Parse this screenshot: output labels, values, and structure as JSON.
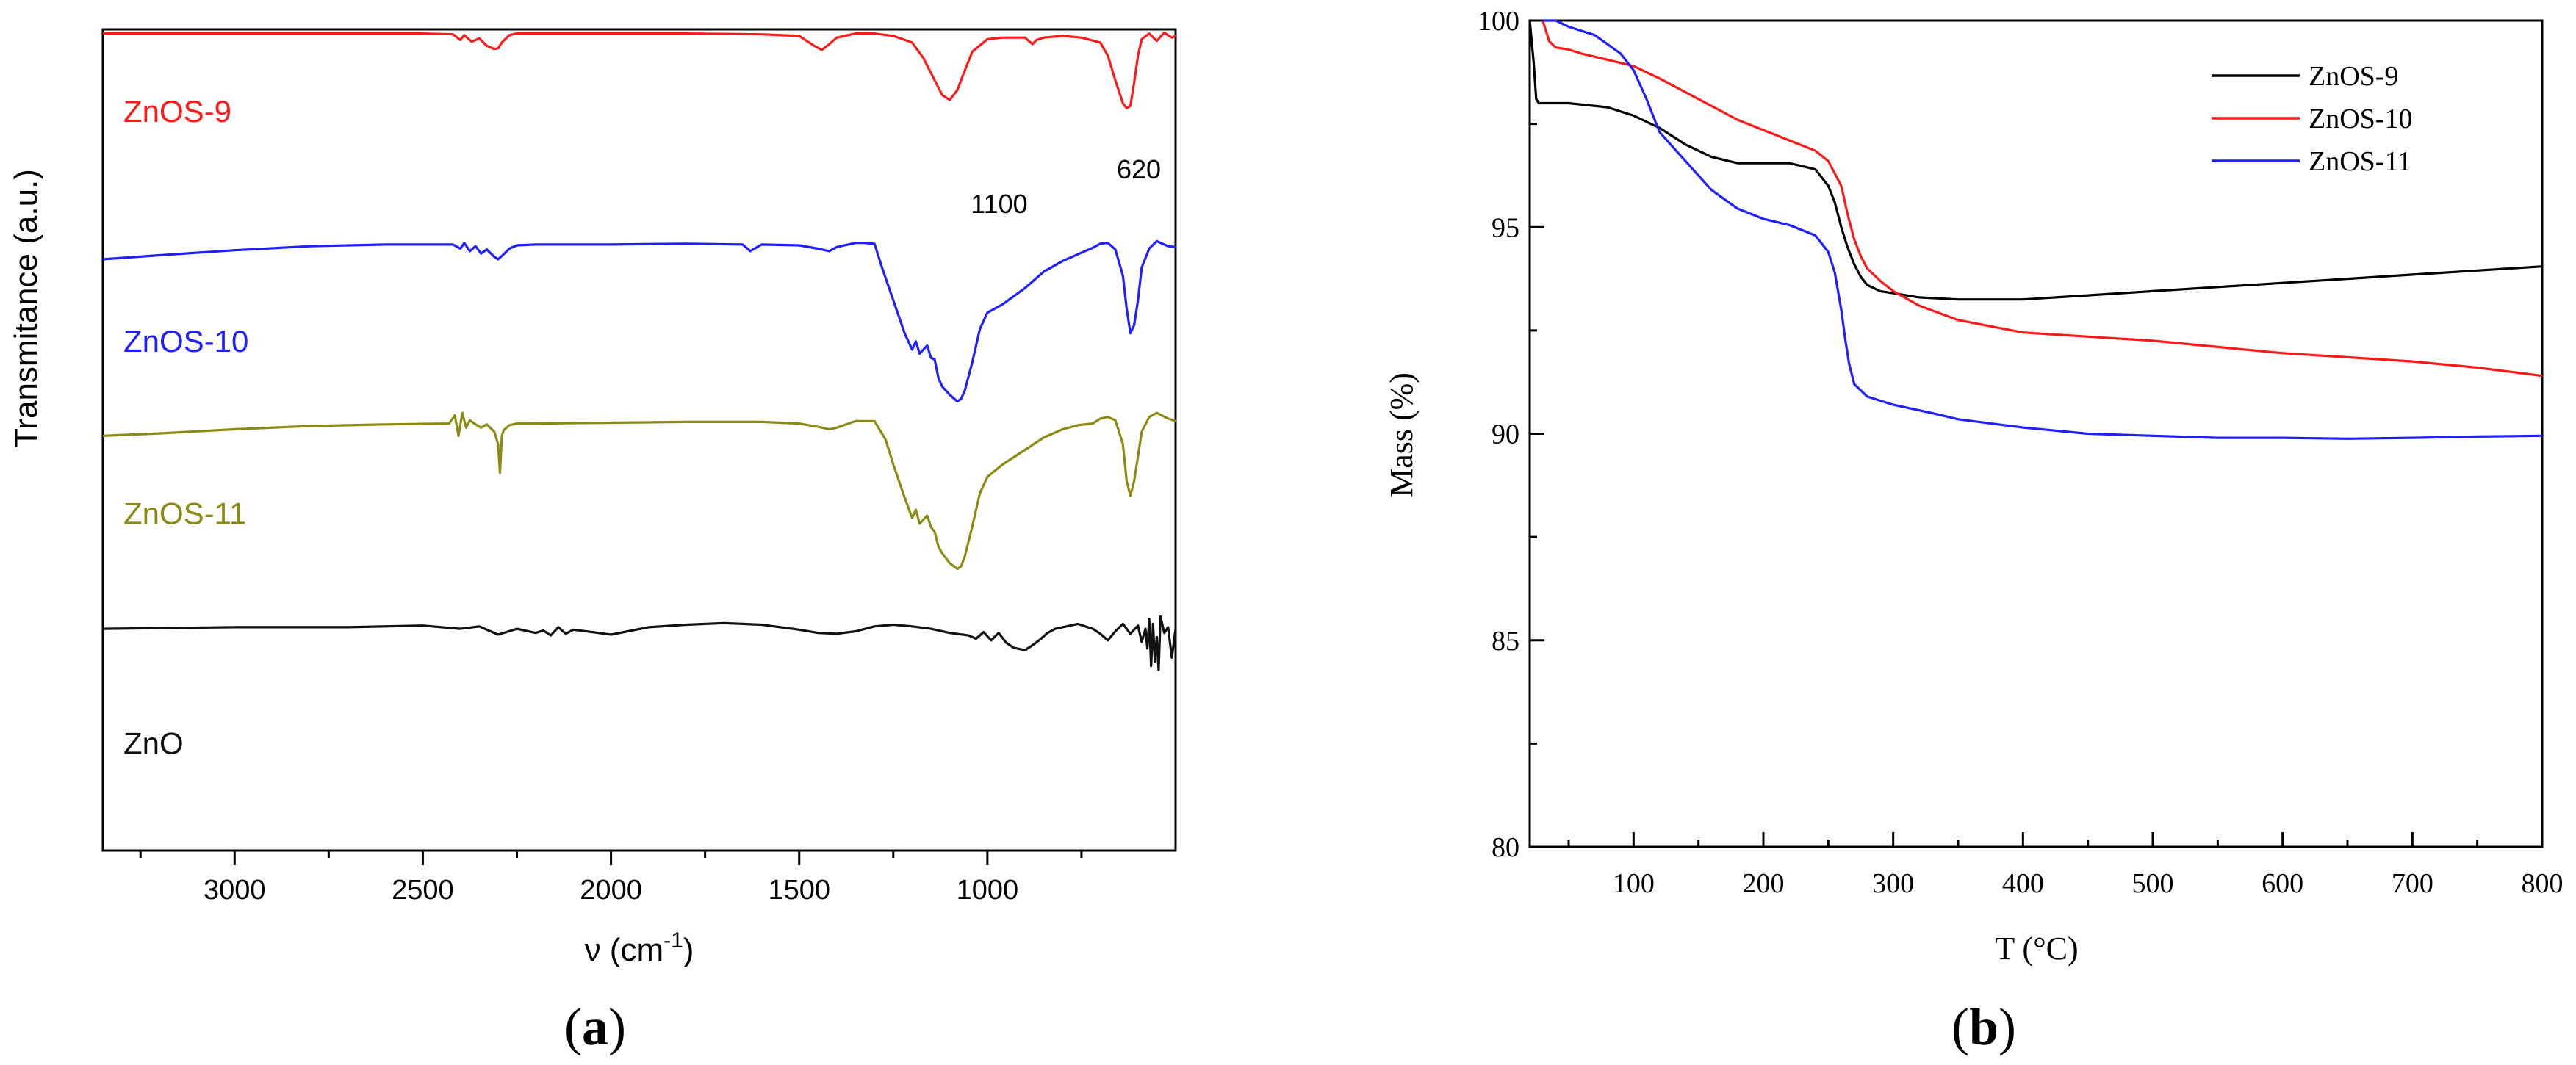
{
  "chart_data": [
    {
      "type": "line",
      "panel_label": "(a)",
      "panel_letter": "a",
      "title": "",
      "xlabel": "ν (cm",
      "xlabel_sup": "-1",
      "xlabel_close": ")",
      "ylabel": "Transmitance (a.u.)",
      "xlim": [
        3350,
        500
      ],
      "x_reversed": true,
      "x_ticks": [
        3000,
        2500,
        2000,
        1500,
        1000
      ],
      "y_ticks_shown": false,
      "legend": "inline labels, left",
      "annotations": [
        {
          "text": "1100",
          "x": 1100
        },
        {
          "text": "620",
          "x": 620
        }
      ],
      "series": [
        {
          "name": "ZnOS-9",
          "color": "#ff1a1a",
          "x": [
            3350,
            3000,
            2500,
            2420,
            2400,
            2390,
            2370,
            2350,
            2330,
            2310,
            2300,
            2290,
            2270,
            2250,
            2200,
            2000,
            1800,
            1600,
            1500,
            1460,
            1440,
            1420,
            1400,
            1350,
            1300,
            1250,
            1200,
            1170,
            1140,
            1120,
            1100,
            1080,
            1060,
            1040,
            1000,
            960,
            900,
            880,
            870,
            850,
            800,
            750,
            700,
            680,
            660,
            640,
            630,
            620,
            610,
            600,
            590,
            570,
            550,
            530,
            510,
            500
          ],
          "y": [
            99.5,
            99.5,
            99.5,
            99.4,
            98.7,
            99.3,
            98.5,
            98.9,
            98.0,
            97.6,
            97.7,
            98.4,
            99.3,
            99.5,
            99.5,
            99.5,
            99.5,
            99.4,
            99.2,
            98.0,
            97.5,
            98.2,
            99.0,
            99.5,
            99.5,
            99.2,
            98.4,
            96.5,
            93.8,
            92.0,
            91.4,
            92.6,
            95.0,
            97.3,
            98.8,
            99.0,
            99.0,
            98.2,
            98.7,
            99.0,
            99.2,
            99.0,
            98.4,
            96.8,
            93.8,
            91.0,
            90.4,
            90.7,
            93.5,
            96.8,
            98.8,
            99.5,
            98.6,
            99.6,
            99.0,
            99.2
          ]
        },
        {
          "name": "ZnOS-10",
          "color": "#1f1fff",
          "x": [
            3350,
            3200,
            3000,
            2800,
            2600,
            2420,
            2400,
            2390,
            2375,
            2360,
            2345,
            2330,
            2310,
            2300,
            2290,
            2270,
            2250,
            2200,
            2000,
            1800,
            1650,
            1630,
            1600,
            1500,
            1450,
            1420,
            1400,
            1350,
            1330,
            1300,
            1280,
            1250,
            1220,
            1200,
            1190,
            1180,
            1160,
            1150,
            1140,
            1130,
            1120,
            1100,
            1080,
            1070,
            1060,
            1040,
            1020,
            1000,
            960,
            900,
            850,
            800,
            760,
            720,
            700,
            680,
            660,
            640,
            630,
            620,
            610,
            600,
            590,
            570,
            550,
            520,
            500
          ],
          "y": [
            72.0,
            72.5,
            73.1,
            73.6,
            73.8,
            73.8,
            73.3,
            74.0,
            73.0,
            73.6,
            72.7,
            73.2,
            72.3,
            72.0,
            72.4,
            73.3,
            73.7,
            73.8,
            73.8,
            73.9,
            73.8,
            73.0,
            73.8,
            73.7,
            73.3,
            73.0,
            73.5,
            74.0,
            74.0,
            73.9,
            71.0,
            67.0,
            63.0,
            61.0,
            62.0,
            60.5,
            61.5,
            60.0,
            59.8,
            57.5,
            56.5,
            55.5,
            54.7,
            55.0,
            56.0,
            59.5,
            63.5,
            65.5,
            66.5,
            68.5,
            70.5,
            71.8,
            72.6,
            73.4,
            73.9,
            74.0,
            73.2,
            70.0,
            66.0,
            63.0,
            64.0,
            67.0,
            71.0,
            73.3,
            74.2,
            73.6,
            73.5
          ]
        },
        {
          "name": "ZnOS-11",
          "color": "#8b8b14",
          "x": [
            3350,
            3200,
            3000,
            2800,
            2600,
            2430,
            2415,
            2405,
            2395,
            2385,
            2375,
            2360,
            2345,
            2330,
            2310,
            2300,
            2295,
            2290,
            2285,
            2270,
            2250,
            2200,
            2000,
            1800,
            1600,
            1500,
            1450,
            1420,
            1400,
            1350,
            1300,
            1270,
            1250,
            1220,
            1200,
            1190,
            1180,
            1160,
            1150,
            1140,
            1130,
            1120,
            1100,
            1080,
            1070,
            1060,
            1040,
            1020,
            1000,
            960,
            900,
            850,
            800,
            760,
            720,
            700,
            680,
            660,
            640,
            630,
            620,
            610,
            600,
            590,
            570,
            550,
            520,
            500
          ],
          "y": [
            50.5,
            50.8,
            51.3,
            51.7,
            51.9,
            52.0,
            53.0,
            50.5,
            53.3,
            51.5,
            52.4,
            51.9,
            51.5,
            51.9,
            51.0,
            49.5,
            46.0,
            50.5,
            51.2,
            51.8,
            52.0,
            52.0,
            52.1,
            52.2,
            52.2,
            52.0,
            51.6,
            51.3,
            51.5,
            52.3,
            52.3,
            50.0,
            47.0,
            43.0,
            40.5,
            41.5,
            39.8,
            40.8,
            39.4,
            38.8,
            37.0,
            36.2,
            35.0,
            34.3,
            34.6,
            35.8,
            39.5,
            43.5,
            45.5,
            47.0,
            48.8,
            50.3,
            51.3,
            51.8,
            52.0,
            52.6,
            52.8,
            52.4,
            49.5,
            45.0,
            43.2,
            45.0,
            48.0,
            51.0,
            52.8,
            53.3,
            52.6,
            52.3
          ]
        },
        {
          "name": "ZnO",
          "color": "#111111",
          "x": [
            3350,
            3000,
            2700,
            2500,
            2400,
            2350,
            2300,
            2250,
            2200,
            2180,
            2160,
            2140,
            2120,
            2100,
            2050,
            2000,
            1900,
            1800,
            1700,
            1600,
            1500,
            1450,
            1400,
            1350,
            1300,
            1250,
            1200,
            1150,
            1100,
            1050,
            1030,
            1010,
            990,
            970,
            950,
            930,
            900,
            880,
            860,
            840,
            820,
            800,
            780,
            760,
            740,
            720,
            700,
            680,
            660,
            640,
            620,
            600,
            590,
            580,
            575,
            570,
            565,
            560,
            555,
            550,
            545,
            540,
            530,
            520,
            510,
            500
          ],
          "y": [
            27.0,
            27.2,
            27.2,
            27.4,
            27.0,
            27.3,
            26.3,
            27.0,
            26.5,
            26.8,
            26.2,
            27.2,
            26.4,
            26.9,
            26.6,
            26.3,
            27.2,
            27.5,
            27.7,
            27.5,
            26.9,
            26.5,
            26.4,
            26.7,
            27.3,
            27.5,
            27.3,
            27.0,
            26.5,
            26.2,
            25.8,
            26.6,
            25.6,
            26.5,
            25.3,
            24.7,
            24.4,
            25.0,
            25.7,
            26.5,
            27.0,
            27.2,
            27.4,
            27.6,
            27.3,
            27.0,
            26.4,
            25.6,
            26.7,
            27.6,
            26.4,
            27.4,
            25.4,
            27.0,
            24.6,
            28.2,
            22.5,
            27.6,
            23.0,
            26.0,
            22.0,
            28.5,
            26.5,
            27.2,
            23.5,
            27.0
          ]
        }
      ]
    },
    {
      "type": "line",
      "panel_label": "(b)",
      "panel_letter": "b",
      "title": "",
      "xlabel": "T (°C)",
      "ylabel": "Mass (%)",
      "xlim": [
        20,
        800
      ],
      "ylim": [
        80,
        100
      ],
      "x_ticks": [
        100,
        200,
        300,
        400,
        500,
        600,
        700,
        800
      ],
      "y_ticks": [
        80,
        85,
        90,
        95,
        100
      ],
      "legend": "top-right",
      "series": [
        {
          "name": "ZnOS-9",
          "color": "#000000",
          "x": [
            20,
            23,
            25,
            27,
            30,
            50,
            80,
            100,
            120,
            140,
            160,
            180,
            200,
            220,
            240,
            250,
            255,
            260,
            265,
            270,
            275,
            280,
            290,
            300,
            320,
            350,
            400,
            450,
            500,
            550,
            600,
            650,
            700,
            750,
            800
          ],
          "y": [
            100,
            99.0,
            98.1,
            98.0,
            98.0,
            98.0,
            97.9,
            97.7,
            97.4,
            97.0,
            96.7,
            96.55,
            96.55,
            96.55,
            96.4,
            96.0,
            95.6,
            95.0,
            94.5,
            94.1,
            93.8,
            93.6,
            93.45,
            93.4,
            93.3,
            93.25,
            93.25,
            93.35,
            93.45,
            93.55,
            93.65,
            93.75,
            93.85,
            93.95,
            94.05
          ]
        },
        {
          "name": "ZnOS-10",
          "color": "#ff1a1a",
          "x": [
            30,
            35,
            40,
            50,
            60,
            80,
            100,
            120,
            150,
            180,
            200,
            220,
            240,
            250,
            260,
            265,
            270,
            275,
            280,
            290,
            300,
            320,
            350,
            400,
            450,
            500,
            550,
            600,
            650,
            700,
            750,
            800
          ],
          "y": [
            100,
            99.5,
            99.35,
            99.3,
            99.2,
            99.05,
            98.9,
            98.6,
            98.1,
            97.6,
            97.35,
            97.1,
            96.85,
            96.6,
            96.0,
            95.3,
            94.7,
            94.3,
            94.0,
            93.7,
            93.45,
            93.1,
            92.75,
            92.45,
            92.35,
            92.25,
            92.1,
            91.95,
            91.85,
            91.75,
            91.6,
            91.4
          ]
        },
        {
          "name": "ZnOS-11",
          "color": "#1f1fff",
          "x": [
            30,
            40,
            50,
            70,
            90,
            100,
            110,
            120,
            140,
            160,
            180,
            200,
            220,
            240,
            250,
            255,
            260,
            263,
            266,
            270,
            280,
            300,
            330,
            350,
            400,
            450,
            500,
            550,
            600,
            650,
            700,
            750,
            800
          ],
          "y": [
            100,
            100,
            99.85,
            99.65,
            99.2,
            98.8,
            98.1,
            97.3,
            96.6,
            95.9,
            95.45,
            95.2,
            95.05,
            94.8,
            94.4,
            93.9,
            93.0,
            92.3,
            91.7,
            91.2,
            90.9,
            90.7,
            90.5,
            90.35,
            90.15,
            90.0,
            89.95,
            89.9,
            89.9,
            89.88,
            89.9,
            89.93,
            89.95
          ]
        }
      ]
    }
  ]
}
